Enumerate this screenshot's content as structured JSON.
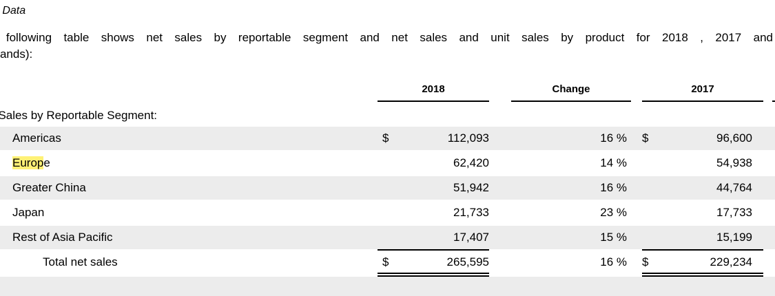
{
  "heading": "es Data",
  "intro_line1": "e following table shows net sales by reportable segment and net sales and unit sales by product for 2018 , 2017 and",
  "intro_line2": "usands):",
  "columns": {
    "c2018": "2018",
    "change": "Change",
    "c2017": "2017"
  },
  "section_title": "t Sales by Reportable Segment:",
  "currency_symbol": "$",
  "rows": [
    {
      "label_highlight": "",
      "label": "Americas",
      "v2018": "112,093",
      "change": "16 %",
      "v2017": "96,600"
    },
    {
      "label_highlight": "Europ",
      "label": "e",
      "v2018": "62,420",
      "change": "14 %",
      "v2017": "54,938"
    },
    {
      "label_highlight": "",
      "label": "Greater China",
      "v2018": "51,942",
      "change": "16 %",
      "v2017": "44,764"
    },
    {
      "label_highlight": "",
      "label": "Japan",
      "v2018": "21,733",
      "change": "23 %",
      "v2017": "17,733"
    },
    {
      "label_highlight": "",
      "label": "Rest of Asia Pacific",
      "v2018": "17,407",
      "change": "15 %",
      "v2017": "15,199"
    }
  ],
  "total": {
    "label": "Total net sales",
    "v2018": "265,595",
    "change": "16 %",
    "v2017": "229,234"
  },
  "colors": {
    "row_shade": "#ececec",
    "highlight": "#fff176"
  }
}
